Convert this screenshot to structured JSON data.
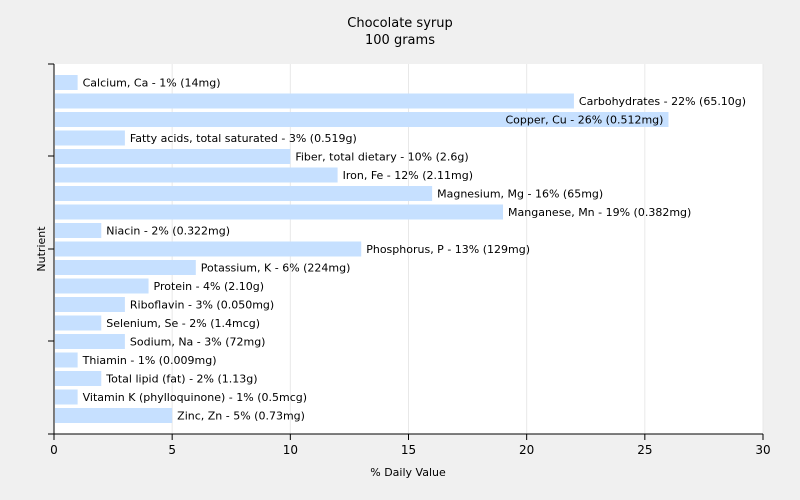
{
  "chart_data": {
    "type": "bar",
    "orientation": "horizontal",
    "title": "Chocolate syrup",
    "subtitle": "100 grams",
    "xlabel": "% Daily Value",
    "ylabel": "Nutrient",
    "xlim": [
      0,
      30
    ],
    "xticks": [
      0,
      5,
      10,
      15,
      20,
      25,
      30
    ],
    "grid": true,
    "bar_color": "#c6e0ff",
    "categories": [
      "Calcium, Ca",
      "Carbohydrates",
      "Copper, Cu",
      "Fatty acids, total saturated",
      "Fiber, total dietary",
      "Iron, Fe",
      "Magnesium, Mg",
      "Manganese, Mn",
      "Niacin",
      "Phosphorus, P",
      "Potassium, K",
      "Protein",
      "Riboflavin",
      "Selenium, Se",
      "Sodium, Na",
      "Thiamin",
      "Total lipid (fat)",
      "Vitamin K (phylloquinone)",
      "Zinc, Zn"
    ],
    "values": [
      1,
      22,
      26,
      3,
      10,
      12,
      16,
      19,
      2,
      13,
      6,
      4,
      3,
      2,
      3,
      1,
      2,
      1,
      5
    ],
    "labels": [
      "Calcium, Ca - 1% (14mg)",
      "Carbohydrates - 22% (65.10g)",
      "Copper, Cu - 26% (0.512mg)",
      "Fatty acids, total saturated - 3% (0.519g)",
      "Fiber, total dietary - 10% (2.6g)",
      "Iron, Fe - 12% (2.11mg)",
      "Magnesium, Mg - 16% (65mg)",
      "Manganese, Mn - 19% (0.382mg)",
      "Niacin - 2% (0.322mg)",
      "Phosphorus, P - 13% (129mg)",
      "Potassium, K - 6% (224mg)",
      "Protein - 4% (2.10g)",
      "Riboflavin - 3% (0.050mg)",
      "Selenium, Se - 2% (1.4mcg)",
      "Sodium, Na - 3% (72mg)",
      "Thiamin - 1% (0.009mg)",
      "Total lipid (fat) - 2% (1.13g)",
      "Vitamin K (phylloquinone) - 1% (0.5mcg)",
      "Zinc, Zn - 5% (0.73mg)"
    ]
  }
}
